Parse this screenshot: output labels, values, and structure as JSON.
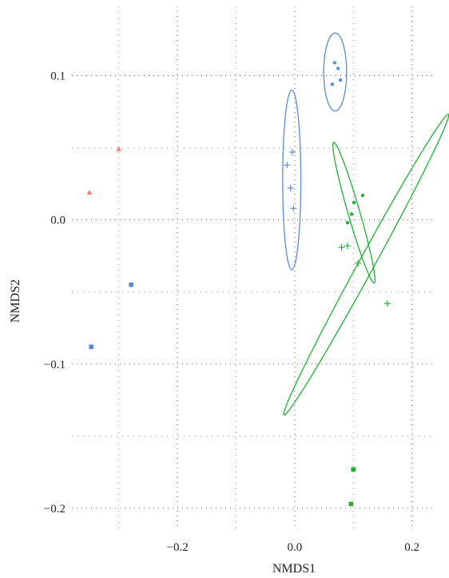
{
  "chart_data": {
    "type": "scatter",
    "title": "",
    "xlabel": "NMDS1",
    "ylabel": "NMDS2",
    "xlim": [
      -0.38,
      0.24
    ],
    "ylim": [
      -0.215,
      0.148
    ],
    "x_ticks": [
      -0.2,
      0.0,
      0.2
    ],
    "x_tick_labels": [
      "−0.2",
      "0.0",
      "0.2"
    ],
    "y_ticks": [
      -0.2,
      -0.1,
      0.0,
      0.1
    ],
    "y_tick_labels": [
      "−0.2",
      "−0.1",
      "0.0",
      "0.1"
    ],
    "x_minor_ticks": [
      -0.3,
      -0.1,
      0.1
    ],
    "y_minor_ticks": [
      -0.15,
      -0.05,
      0.05
    ],
    "grid": true,
    "legend": "none",
    "colors": {
      "red": "#f8766d",
      "green": "#1fb035",
      "blue": "#5b8bd0"
    },
    "points": [
      {
        "x": -0.3,
        "y": 0.049,
        "shape": "triangle",
        "color": "red"
      },
      {
        "x": -0.35,
        "y": 0.019,
        "shape": "triangle",
        "color": "red"
      },
      {
        "x": -0.279,
        "y": -0.045,
        "shape": "square",
        "color": "blue"
      },
      {
        "x": -0.347,
        "y": -0.088,
        "shape": "square",
        "color": "blue"
      },
      {
        "x": 0.1,
        "y": -0.173,
        "shape": "square",
        "color": "green"
      },
      {
        "x": 0.096,
        "y": -0.197,
        "shape": "square",
        "color": "green"
      },
      {
        "x": 0.068,
        "y": 0.109,
        "shape": "dot",
        "color": "blue"
      },
      {
        "x": 0.074,
        "y": 0.105,
        "shape": "dot",
        "color": "blue"
      },
      {
        "x": 0.078,
        "y": 0.097,
        "shape": "dot",
        "color": "blue"
      },
      {
        "x": 0.064,
        "y": 0.094,
        "shape": "dot",
        "color": "blue"
      },
      {
        "x": -0.004,
        "y": 0.047,
        "shape": "plus",
        "color": "blue"
      },
      {
        "x": -0.013,
        "y": 0.038,
        "shape": "plus",
        "color": "blue"
      },
      {
        "x": -0.007,
        "y": 0.022,
        "shape": "plus",
        "color": "blue"
      },
      {
        "x": -0.002,
        "y": 0.008,
        "shape": "plus",
        "color": "blue"
      },
      {
        "x": 0.116,
        "y": 0.017,
        "shape": "dot",
        "color": "green"
      },
      {
        "x": 0.101,
        "y": 0.012,
        "shape": "dot",
        "color": "green"
      },
      {
        "x": 0.097,
        "y": 0.004,
        "shape": "dot",
        "color": "green"
      },
      {
        "x": 0.09,
        "y": -0.002,
        "shape": "dot",
        "color": "green"
      },
      {
        "x": 0.08,
        "y": -0.019,
        "shape": "plus",
        "color": "green"
      },
      {
        "x": 0.09,
        "y": -0.018,
        "shape": "plus",
        "color": "green"
      },
      {
        "x": 0.108,
        "y": -0.03,
        "shape": "plus",
        "color": "green"
      },
      {
        "x": 0.158,
        "y": -0.058,
        "shape": "plus",
        "color": "green"
      }
    ],
    "ellipses": [
      {
        "cx": 0.069,
        "cy": 0.1025,
        "rx": 0.0195,
        "ry": 0.027,
        "angle": 0,
        "color": "blue"
      },
      {
        "cx": -0.005,
        "cy": 0.0277,
        "rx": 0.0155,
        "ry": 0.0623,
        "angle": 0,
        "color": "blue"
      },
      {
        "cx": 0.101,
        "cy": 0.005,
        "rx": 0.06,
        "ry": 0.0085,
        "angle": -54,
        "color": "green"
      },
      {
        "cx": 0.122,
        "cy": -0.031,
        "rx": 0.175,
        "ry": 0.009,
        "angle": 36.5,
        "color": "green"
      }
    ]
  }
}
